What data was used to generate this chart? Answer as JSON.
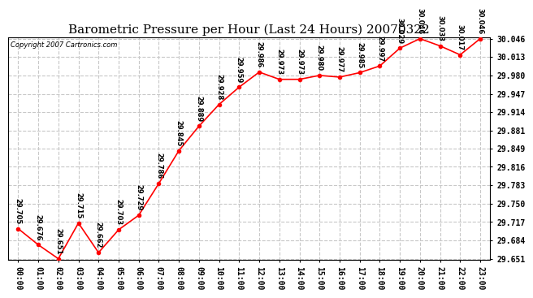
{
  "title": "Barometric Pressure per Hour (Last 24 Hours) 20070322",
  "copyright": "Copyright 2007 Cartronics.com",
  "hours": [
    0,
    1,
    2,
    3,
    4,
    5,
    6,
    7,
    8,
    9,
    10,
    11,
    12,
    13,
    14,
    15,
    16,
    17,
    18,
    19,
    20,
    21,
    22,
    23
  ],
  "hour_labels": [
    "00:00",
    "01:00",
    "02:00",
    "03:00",
    "04:00",
    "05:00",
    "06:00",
    "07:00",
    "08:00",
    "09:00",
    "10:00",
    "11:00",
    "12:00",
    "13:00",
    "14:00",
    "15:00",
    "16:00",
    "17:00",
    "18:00",
    "19:00",
    "20:00",
    "21:00",
    "22:00",
    "23:00"
  ],
  "values": [
    29.705,
    29.676,
    29.651,
    29.715,
    29.662,
    29.703,
    29.729,
    29.786,
    29.845,
    29.889,
    29.928,
    29.959,
    29.986,
    29.973,
    29.973,
    29.98,
    29.977,
    29.985,
    29.997,
    30.029,
    30.046,
    30.033,
    30.017,
    30.046
  ],
  "ylim_min": 29.649,
  "ylim_max": 30.048,
  "ytick_values": [
    29.651,
    29.684,
    29.717,
    29.75,
    29.783,
    29.816,
    29.849,
    29.881,
    29.914,
    29.947,
    29.98,
    30.013,
    30.046
  ],
  "line_color": "red",
  "marker_color": "red",
  "marker_style": "o",
  "marker_size": 3,
  "bg_color": "white",
  "plot_bg_color": "white",
  "grid_color": "#c8c8c8",
  "grid_style": "--",
  "title_fontsize": 11,
  "copyright_fontsize": 6,
  "label_fontsize": 6,
  "tick_fontsize": 7,
  "ytick_fontsize": 7
}
